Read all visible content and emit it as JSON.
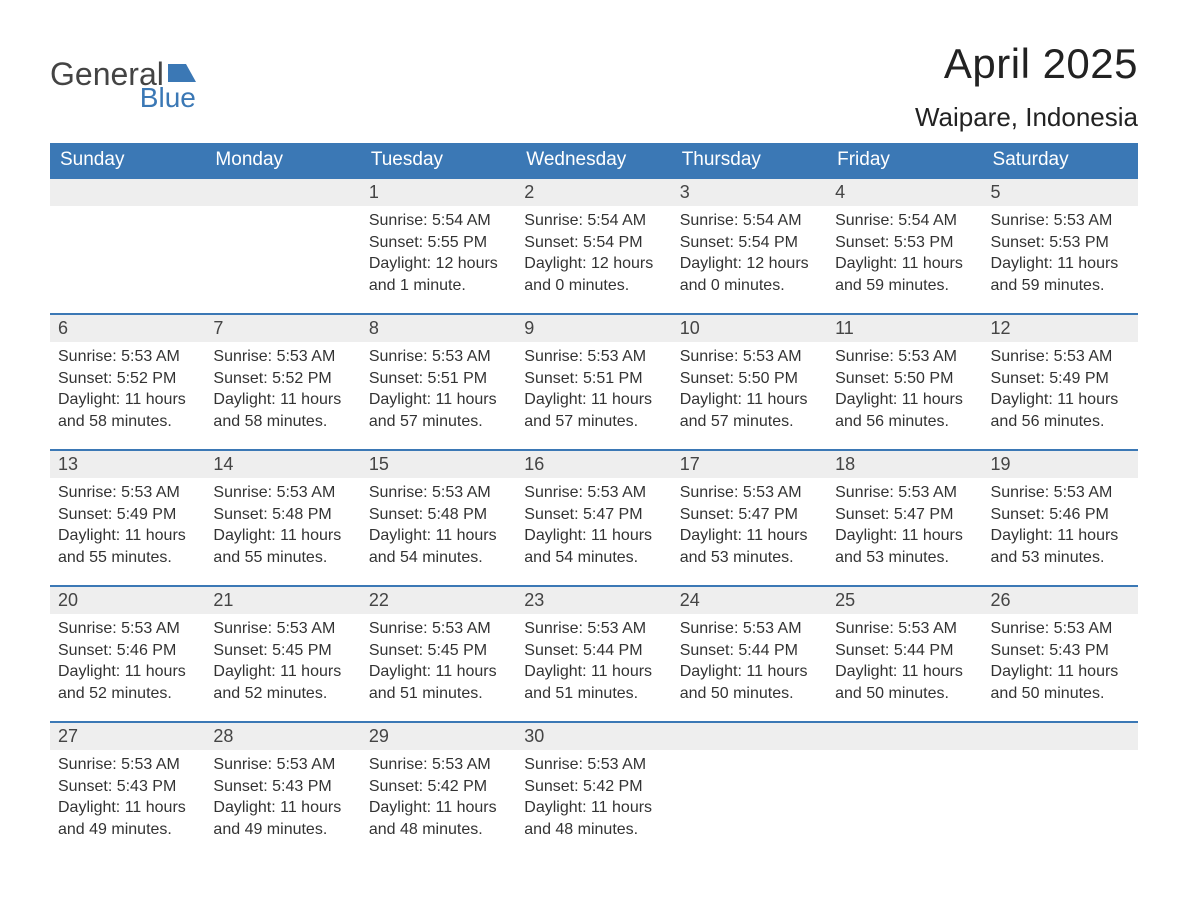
{
  "logo": {
    "word1": "General",
    "word2": "Blue",
    "shape_color": "#3b78b5",
    "word1_color": "#444444",
    "word2_color": "#3b78b5"
  },
  "title": "April 2025",
  "location": "Waipare, Indonesia",
  "colors": {
    "header_bg": "#3b78b5",
    "header_text": "#ffffff",
    "daynum_bg": "#eeeeee",
    "daynum_border": "#3b78b5",
    "body_text": "#333333",
    "page_bg": "#ffffff"
  },
  "fonts": {
    "title_size": 42,
    "location_size": 26,
    "dayhead_size": 19,
    "daynum_size": 18,
    "body_size": 16
  },
  "days_of_week": [
    "Sunday",
    "Monday",
    "Tuesday",
    "Wednesday",
    "Thursday",
    "Friday",
    "Saturday"
  ],
  "weeks": [
    [
      {
        "n": "",
        "sunrise": "",
        "sunset": "",
        "daylight": ""
      },
      {
        "n": "",
        "sunrise": "",
        "sunset": "",
        "daylight": ""
      },
      {
        "n": "1",
        "sunrise": "Sunrise: 5:54 AM",
        "sunset": "Sunset: 5:55 PM",
        "daylight": "Daylight: 12 hours and 1 minute."
      },
      {
        "n": "2",
        "sunrise": "Sunrise: 5:54 AM",
        "sunset": "Sunset: 5:54 PM",
        "daylight": "Daylight: 12 hours and 0 minutes."
      },
      {
        "n": "3",
        "sunrise": "Sunrise: 5:54 AM",
        "sunset": "Sunset: 5:54 PM",
        "daylight": "Daylight: 12 hours and 0 minutes."
      },
      {
        "n": "4",
        "sunrise": "Sunrise: 5:54 AM",
        "sunset": "Sunset: 5:53 PM",
        "daylight": "Daylight: 11 hours and 59 minutes."
      },
      {
        "n": "5",
        "sunrise": "Sunrise: 5:53 AM",
        "sunset": "Sunset: 5:53 PM",
        "daylight": "Daylight: 11 hours and 59 minutes."
      }
    ],
    [
      {
        "n": "6",
        "sunrise": "Sunrise: 5:53 AM",
        "sunset": "Sunset: 5:52 PM",
        "daylight": "Daylight: 11 hours and 58 minutes."
      },
      {
        "n": "7",
        "sunrise": "Sunrise: 5:53 AM",
        "sunset": "Sunset: 5:52 PM",
        "daylight": "Daylight: 11 hours and 58 minutes."
      },
      {
        "n": "8",
        "sunrise": "Sunrise: 5:53 AM",
        "sunset": "Sunset: 5:51 PM",
        "daylight": "Daylight: 11 hours and 57 minutes."
      },
      {
        "n": "9",
        "sunrise": "Sunrise: 5:53 AM",
        "sunset": "Sunset: 5:51 PM",
        "daylight": "Daylight: 11 hours and 57 minutes."
      },
      {
        "n": "10",
        "sunrise": "Sunrise: 5:53 AM",
        "sunset": "Sunset: 5:50 PM",
        "daylight": "Daylight: 11 hours and 57 minutes."
      },
      {
        "n": "11",
        "sunrise": "Sunrise: 5:53 AM",
        "sunset": "Sunset: 5:50 PM",
        "daylight": "Daylight: 11 hours and 56 minutes."
      },
      {
        "n": "12",
        "sunrise": "Sunrise: 5:53 AM",
        "sunset": "Sunset: 5:49 PM",
        "daylight": "Daylight: 11 hours and 56 minutes."
      }
    ],
    [
      {
        "n": "13",
        "sunrise": "Sunrise: 5:53 AM",
        "sunset": "Sunset: 5:49 PM",
        "daylight": "Daylight: 11 hours and 55 minutes."
      },
      {
        "n": "14",
        "sunrise": "Sunrise: 5:53 AM",
        "sunset": "Sunset: 5:48 PM",
        "daylight": "Daylight: 11 hours and 55 minutes."
      },
      {
        "n": "15",
        "sunrise": "Sunrise: 5:53 AM",
        "sunset": "Sunset: 5:48 PM",
        "daylight": "Daylight: 11 hours and 54 minutes."
      },
      {
        "n": "16",
        "sunrise": "Sunrise: 5:53 AM",
        "sunset": "Sunset: 5:47 PM",
        "daylight": "Daylight: 11 hours and 54 minutes."
      },
      {
        "n": "17",
        "sunrise": "Sunrise: 5:53 AM",
        "sunset": "Sunset: 5:47 PM",
        "daylight": "Daylight: 11 hours and 53 minutes."
      },
      {
        "n": "18",
        "sunrise": "Sunrise: 5:53 AM",
        "sunset": "Sunset: 5:47 PM",
        "daylight": "Daylight: 11 hours and 53 minutes."
      },
      {
        "n": "19",
        "sunrise": "Sunrise: 5:53 AM",
        "sunset": "Sunset: 5:46 PM",
        "daylight": "Daylight: 11 hours and 53 minutes."
      }
    ],
    [
      {
        "n": "20",
        "sunrise": "Sunrise: 5:53 AM",
        "sunset": "Sunset: 5:46 PM",
        "daylight": "Daylight: 11 hours and 52 minutes."
      },
      {
        "n": "21",
        "sunrise": "Sunrise: 5:53 AM",
        "sunset": "Sunset: 5:45 PM",
        "daylight": "Daylight: 11 hours and 52 minutes."
      },
      {
        "n": "22",
        "sunrise": "Sunrise: 5:53 AM",
        "sunset": "Sunset: 5:45 PM",
        "daylight": "Daylight: 11 hours and 51 minutes."
      },
      {
        "n": "23",
        "sunrise": "Sunrise: 5:53 AM",
        "sunset": "Sunset: 5:44 PM",
        "daylight": "Daylight: 11 hours and 51 minutes."
      },
      {
        "n": "24",
        "sunrise": "Sunrise: 5:53 AM",
        "sunset": "Sunset: 5:44 PM",
        "daylight": "Daylight: 11 hours and 50 minutes."
      },
      {
        "n": "25",
        "sunrise": "Sunrise: 5:53 AM",
        "sunset": "Sunset: 5:44 PM",
        "daylight": "Daylight: 11 hours and 50 minutes."
      },
      {
        "n": "26",
        "sunrise": "Sunrise: 5:53 AM",
        "sunset": "Sunset: 5:43 PM",
        "daylight": "Daylight: 11 hours and 50 minutes."
      }
    ],
    [
      {
        "n": "27",
        "sunrise": "Sunrise: 5:53 AM",
        "sunset": "Sunset: 5:43 PM",
        "daylight": "Daylight: 11 hours and 49 minutes."
      },
      {
        "n": "28",
        "sunrise": "Sunrise: 5:53 AM",
        "sunset": "Sunset: 5:43 PM",
        "daylight": "Daylight: 11 hours and 49 minutes."
      },
      {
        "n": "29",
        "sunrise": "Sunrise: 5:53 AM",
        "sunset": "Sunset: 5:42 PM",
        "daylight": "Daylight: 11 hours and 48 minutes."
      },
      {
        "n": "30",
        "sunrise": "Sunrise: 5:53 AM",
        "sunset": "Sunset: 5:42 PM",
        "daylight": "Daylight: 11 hours and 48 minutes."
      },
      {
        "n": "",
        "sunrise": "",
        "sunset": "",
        "daylight": ""
      },
      {
        "n": "",
        "sunrise": "",
        "sunset": "",
        "daylight": ""
      },
      {
        "n": "",
        "sunrise": "",
        "sunset": "",
        "daylight": ""
      }
    ]
  ]
}
